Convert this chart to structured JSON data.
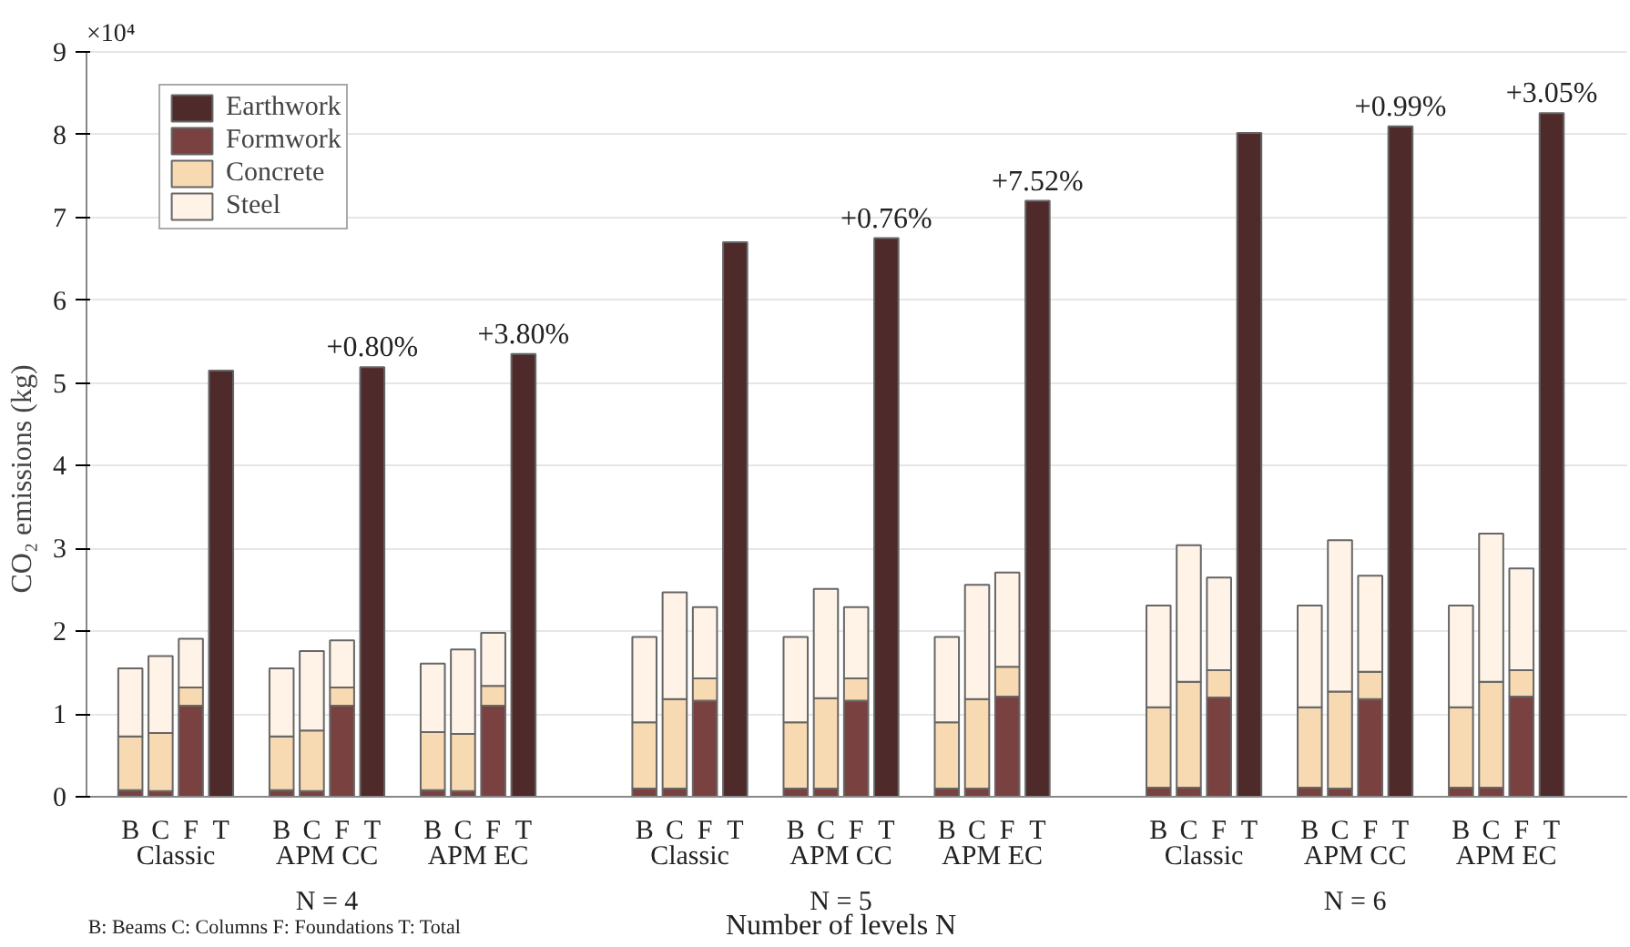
{
  "chart_data": {
    "type": "bar",
    "stacked": true,
    "xlabel": "Number of levels N",
    "ylabel": "CO₂ emissions (kg)",
    "categories": [
      "B",
      "C",
      "F",
      "T",
      null,
      "B",
      "C",
      "F",
      "T",
      null,
      "B",
      "C",
      "F",
      "T",
      null,
      null,
      null,
      "B",
      "C",
      "F",
      "T",
      null,
      "B",
      "C",
      "F",
      "T",
      null,
      "B",
      "C",
      "F",
      "T",
      null,
      null,
      null,
      "B",
      "C",
      "F",
      "T",
      null,
      "B",
      "C",
      "F",
      "T",
      null,
      "B",
      "C",
      "F",
      "T"
    ],
    "series": [
      {
        "name": "Earthwork",
        "color": "#4f2a2b",
        "values": [
          null,
          null,
          null,
          5.15,
          null,
          null,
          null,
          null,
          5.19,
          null,
          null,
          null,
          null,
          5.35,
          null,
          null,
          null,
          null,
          null,
          null,
          6.7,
          null,
          null,
          null,
          null,
          6.75,
          null,
          null,
          null,
          null,
          7.2,
          null,
          null,
          null,
          null,
          null,
          null,
          8.02,
          null,
          null,
          null,
          null,
          8.1,
          null,
          null,
          null,
          null,
          8.26
        ]
      },
      {
        "name": "Formwork",
        "color": "#7a4141",
        "values": [
          0.08,
          0.07,
          1.1,
          null,
          null,
          0.08,
          0.07,
          1.1,
          null,
          null,
          0.08,
          0.07,
          1.1,
          null,
          null,
          null,
          null,
          0.1,
          0.1,
          1.16,
          null,
          null,
          0.1,
          0.1,
          1.16,
          null,
          null,
          0.1,
          0.1,
          1.21,
          null,
          null,
          null,
          null,
          0.11,
          0.11,
          1.2,
          null,
          null,
          0.11,
          0.1,
          1.18,
          null,
          null,
          0.11,
          0.11,
          1.21,
          null
        ]
      },
      {
        "name": "Concrete",
        "color": "#f8dab2",
        "values": [
          0.65,
          0.7,
          0.22,
          null,
          null,
          0.65,
          0.73,
          0.22,
          null,
          null,
          0.7,
          0.69,
          0.24,
          null,
          null,
          null,
          null,
          0.8,
          1.08,
          0.27,
          null,
          null,
          0.8,
          1.09,
          0.27,
          null,
          null,
          0.8,
          1.08,
          0.36,
          null,
          null,
          null,
          null,
          0.97,
          1.28,
          0.33,
          null,
          null,
          0.97,
          1.17,
          0.33,
          null,
          null,
          0.97,
          1.28,
          0.32,
          null
        ]
      },
      {
        "name": "Steel",
        "color": "#fef3e6",
        "values": [
          0.82,
          0.93,
          0.59,
          null,
          null,
          0.82,
          0.96,
          0.57,
          null,
          null,
          0.83,
          1.02,
          0.64,
          null,
          null,
          null,
          null,
          1.03,
          1.29,
          0.86,
          null,
          null,
          1.03,
          1.32,
          0.86,
          null,
          null,
          1.03,
          1.38,
          1.14,
          null,
          null,
          null,
          null,
          1.23,
          1.65,
          1.12,
          null,
          null,
          1.23,
          1.83,
          1.16,
          null,
          null,
          1.23,
          1.79,
          1.23,
          null
        ]
      }
    ],
    "ylim": [
      0,
      9
    ],
    "yticks": [
      0,
      1,
      2,
      3,
      4,
      5,
      6,
      7,
      8,
      9
    ],
    "grid": "y",
    "legend": "top left",
    "annotations": [
      "Classic",
      "APM CC",
      "APM EC",
      "Classic",
      "APM CC",
      "APM EC",
      "Classic",
      "APM CC",
      "APM EC",
      "N = 4",
      "N = 5",
      "N = 6",
      "×10⁴",
      "B: Beams C: Columns F: Foundations T: Total",
      {
        "text": "+0.80%",
        "y": 5.19
      },
      {
        "text": "+3.80%",
        "y": 5.35
      },
      {
        "text": "+0.76%",
        "y": 6.75
      },
      {
        "text": "+7.52%",
        "y": 7.2
      },
      {
        "text": "+0.99%",
        "y": 8.1
      },
      {
        "text": "+3.05%",
        "y": 8.26
      }
    ]
  }
}
